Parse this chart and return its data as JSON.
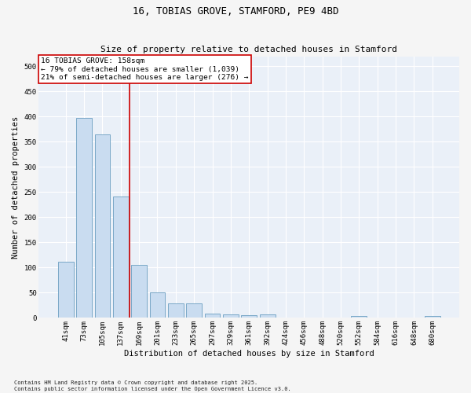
{
  "title": "16, TOBIAS GROVE, STAMFORD, PE9 4BD",
  "subtitle": "Size of property relative to detached houses in Stamford",
  "xlabel": "Distribution of detached houses by size in Stamford",
  "ylabel": "Number of detached properties",
  "categories": [
    "41sqm",
    "73sqm",
    "105sqm",
    "137sqm",
    "169sqm",
    "201sqm",
    "233sqm",
    "265sqm",
    "297sqm",
    "329sqm",
    "361sqm",
    "392sqm",
    "424sqm",
    "456sqm",
    "488sqm",
    "520sqm",
    "552sqm",
    "584sqm",
    "616sqm",
    "648sqm",
    "680sqm"
  ],
  "values": [
    112,
    397,
    365,
    241,
    105,
    51,
    29,
    29,
    9,
    7,
    5,
    7,
    1,
    0,
    1,
    0,
    3,
    0,
    1,
    0,
    3
  ],
  "bar_color": "#c9dcf0",
  "bar_edge_color": "#6a9ec0",
  "vline_x": 3.5,
  "vline_color": "#cc0000",
  "annotation_line1": "16 TOBIAS GROVE: 158sqm",
  "annotation_line2": "← 79% of detached houses are smaller (1,039)",
  "annotation_line3": "21% of semi-detached houses are larger (276) →",
  "annotation_box_facecolor": "#ffffff",
  "annotation_box_edgecolor": "#cc0000",
  "ylim": [
    0,
    520
  ],
  "yticks": [
    0,
    50,
    100,
    150,
    200,
    250,
    300,
    350,
    400,
    450,
    500
  ],
  "fig_bg": "#f5f5f5",
  "ax_bg": "#eaf0f8",
  "grid_color": "#ffffff",
  "footnote1": "Contains HM Land Registry data © Crown copyright and database right 2025.",
  "footnote2": "Contains public sector information licensed under the Open Government Licence v3.0.",
  "title_fontsize": 9,
  "subtitle_fontsize": 8,
  "axis_label_fontsize": 7.5,
  "tick_fontsize": 6.5,
  "annotation_fontsize": 6.8,
  "footnote_fontsize": 5.0
}
